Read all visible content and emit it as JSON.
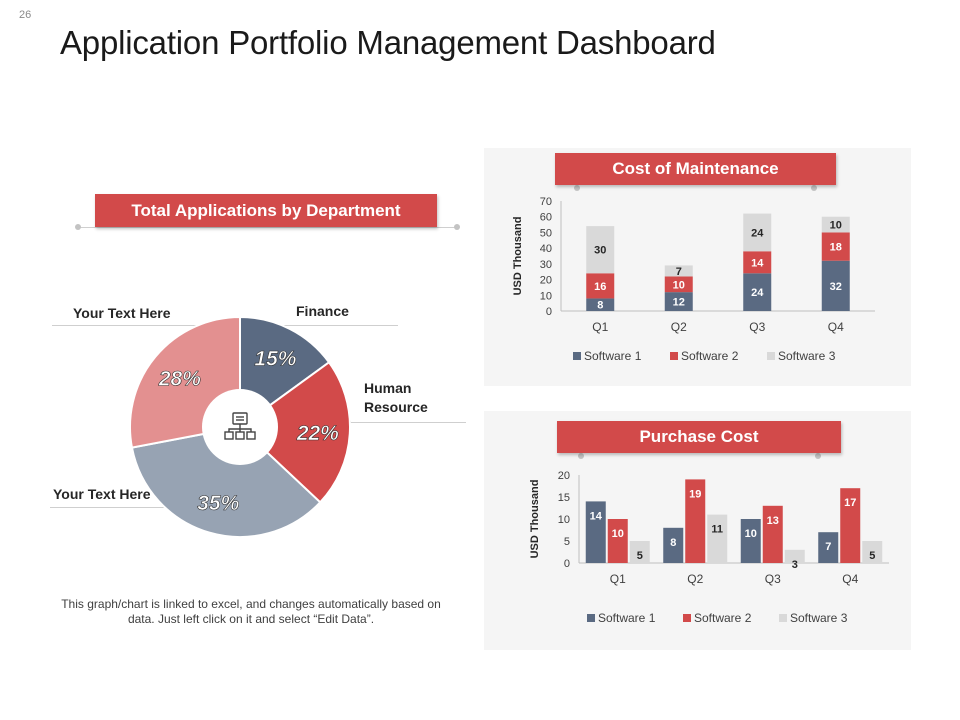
{
  "slide_number": "26",
  "title": "Application Portfolio Management Dashboard",
  "footnote": "This graph/chart is linked to excel, and changes automatically based on data. Just left click on it and select “Edit Data”.",
  "colors": {
    "accent": "#d24a4a",
    "software1": "#5a6a82",
    "software2": "#d24a4a",
    "software3": "#d9d9d9",
    "pie_finance": "#5a6a82",
    "pie_hr": "#d24a4a",
    "pie_text_bottom": "#97a3b3",
    "pie_text_top": "#e39090"
  },
  "icon": {
    "center": "org-chart-icon"
  },
  "chart_data": [
    {
      "type": "pie",
      "title": "Total Applications by Department",
      "slices": [
        {
          "label": "Finance",
          "value": 15,
          "display": "15%"
        },
        {
          "label": "Human Resource",
          "value": 22,
          "display": "22%"
        },
        {
          "label": "Your Text Here",
          "value": 35,
          "display": "35%"
        },
        {
          "label": "Your Text Here",
          "value": 28,
          "display": "28%"
        }
      ],
      "callouts": {
        "finance": "Finance",
        "hr_line1": "Human",
        "hr_line2": "Resource",
        "bottom_left": "Your Text Here",
        "top_left": "Your Text Here"
      }
    },
    {
      "type": "bar",
      "stacked": true,
      "title": "Cost of Maintenance",
      "ylabel": "USD Thousand",
      "ylim": [
        0,
        70
      ],
      "yticks": [
        0,
        10,
        20,
        30,
        40,
        50,
        60,
        70
      ],
      "categories": [
        "Q1",
        "Q2",
        "Q3",
        "Q4"
      ],
      "series": [
        {
          "name": "Software 1",
          "values": [
            8,
            12,
            24,
            32
          ]
        },
        {
          "name": "Software 2",
          "values": [
            16,
            10,
            14,
            18
          ]
        },
        {
          "name": "Software 3",
          "values": [
            30,
            7,
            24,
            10
          ]
        }
      ]
    },
    {
      "type": "bar",
      "stacked": false,
      "title": "Purchase Cost",
      "ylabel": "USD Thousand",
      "ylim": [
        0,
        20
      ],
      "yticks": [
        0,
        5,
        10,
        15,
        20
      ],
      "categories": [
        "Q1",
        "Q2",
        "Q3",
        "Q4"
      ],
      "series": [
        {
          "name": "Software 1",
          "values": [
            14,
            8,
            10,
            7
          ]
        },
        {
          "name": "Software 2",
          "values": [
            10,
            19,
            13,
            17
          ]
        },
        {
          "name": "Software 3",
          "values": [
            5,
            11,
            3,
            5
          ]
        }
      ]
    }
  ]
}
